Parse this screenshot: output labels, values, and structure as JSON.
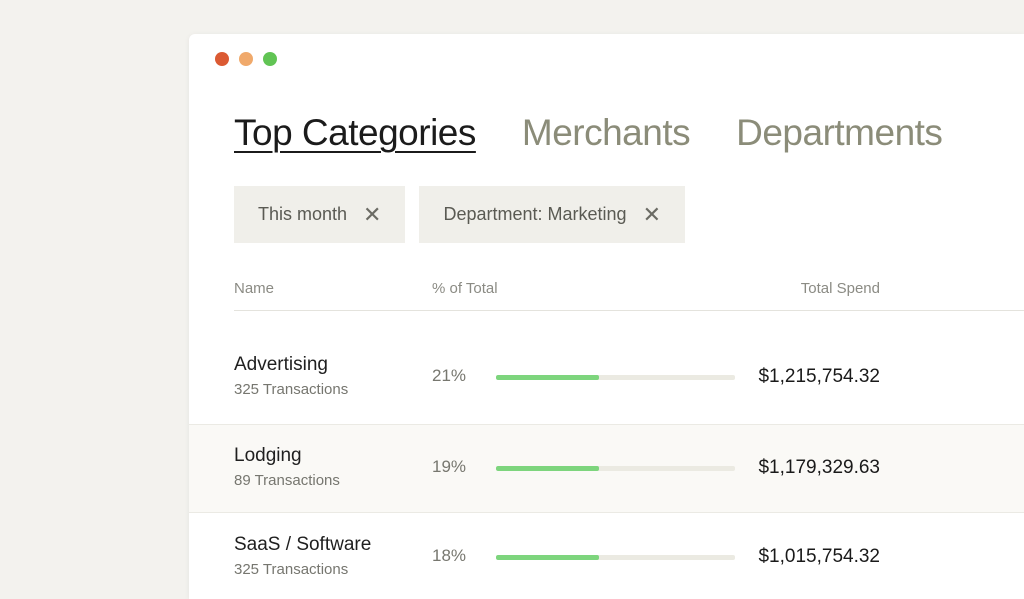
{
  "window": {
    "traffic_colors": [
      "#db5a33",
      "#f0a96b",
      "#61c454"
    ]
  },
  "tabs": [
    {
      "label": "Top Categories",
      "active": true
    },
    {
      "label": "Merchants",
      "active": false
    },
    {
      "label": "Departments",
      "active": false
    }
  ],
  "filters": [
    {
      "label": "This month",
      "close": "✕"
    },
    {
      "label": "Department: Marketing",
      "close": "✕"
    }
  ],
  "table": {
    "headers": {
      "name": "Name",
      "pct": "% of Total",
      "spend": "Total Spend"
    },
    "rows": [
      {
        "name": "Advertising",
        "transactions": "325 Transactions",
        "pct": "21%",
        "fill": 0.43,
        "spend": "$1,215,754.32"
      },
      {
        "name": "Lodging",
        "transactions": "89 Transactions",
        "pct": "19%",
        "fill": 0.43,
        "spend": "$1,179,329.63"
      },
      {
        "name": "SaaS / Software",
        "transactions": "325 Transactions",
        "pct": "18%",
        "fill": 0.43,
        "spend": "$1,015,754.32"
      }
    ]
  },
  "colors": {
    "bar_fill": "#7dd57d",
    "bar_track": "#ebeae2",
    "tab_inactive": "#8b8c79"
  }
}
